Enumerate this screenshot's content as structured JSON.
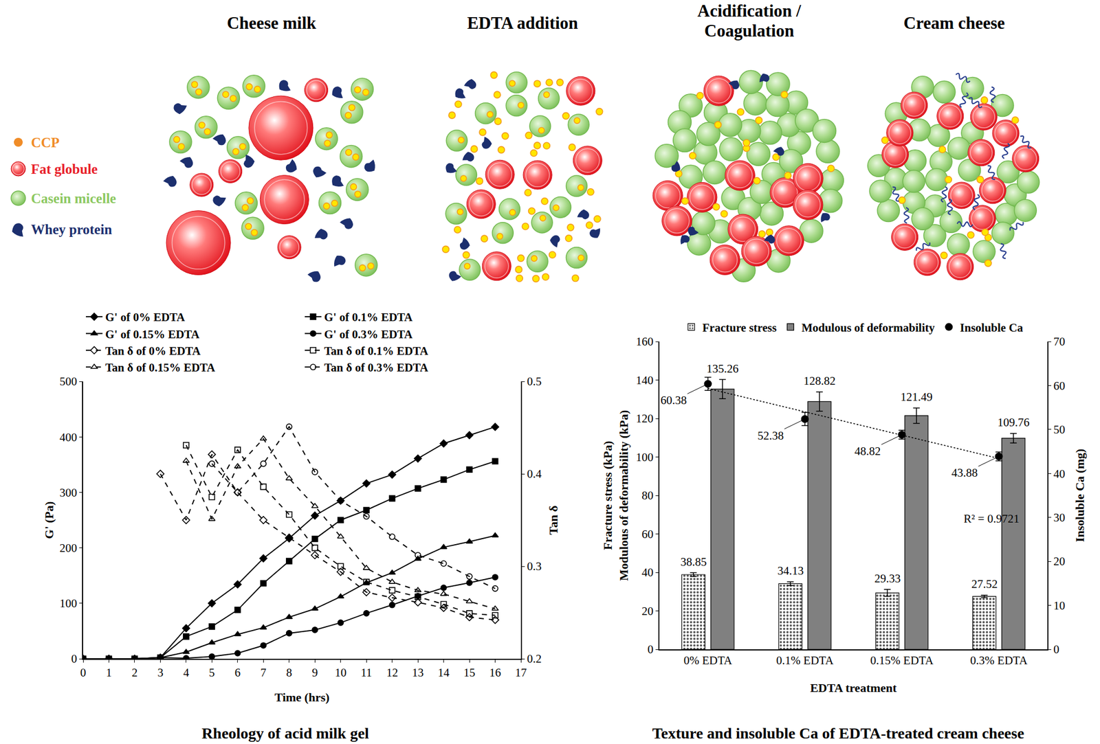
{
  "diagram": {
    "panels": [
      {
        "title": [
          "Cheese milk"
        ]
      },
      {
        "title": [
          "EDTA addition"
        ]
      },
      {
        "title": [
          "Acidification /",
          "Coagulation"
        ]
      },
      {
        "title": [
          "Cream cheese"
        ]
      }
    ],
    "legend": [
      {
        "label": "CCP",
        "color": "#f08c28"
      },
      {
        "label": "Fat globule",
        "color": "#e8202a"
      },
      {
        "label": "Casein micelle",
        "color": "#8cc860"
      },
      {
        "label": "Whey protein",
        "color": "#1c2f6e"
      }
    ]
  },
  "chart_data": [
    {
      "type": "line",
      "title": "Rheology of acid milk gel",
      "x_label": "Time (hrs)",
      "y_label": "G' (Pa)",
      "y2_label": "Tan δ",
      "x": [
        0,
        1,
        2,
        3,
        4,
        5,
        6,
        7,
        8,
        9,
        10,
        11,
        12,
        13,
        14,
        15,
        16
      ],
      "xlim": [
        0,
        17
      ],
      "xticks": [
        0,
        1,
        2,
        3,
        4,
        5,
        6,
        7,
        8,
        9,
        10,
        11,
        12,
        13,
        14,
        15,
        16,
        17
      ],
      "ylim": [
        0,
        500
      ],
      "yticks": [
        0,
        100,
        200,
        300,
        400,
        500
      ],
      "y2lim": [
        0.2,
        0.5
      ],
      "y2ticks": [
        0.2,
        0.3,
        0.4,
        0.5
      ],
      "grid": false,
      "legend": "top",
      "series": [
        {
          "name": "G' of 0% EDTA",
          "color": "#000000",
          "marker": "diamond",
          "line_style": "solid",
          "values": [
            0,
            0,
            0,
            2,
            55,
            100,
            134,
            181,
            217,
            258,
            285,
            316,
            332,
            361,
            388,
            403,
            418
          ]
        },
        {
          "name": "G' of 0.1% EDTA",
          "color": "#000000",
          "marker": "square",
          "line_style": "solid",
          "values": [
            0,
            0,
            0,
            2,
            40,
            58,
            88,
            136,
            176,
            216,
            250,
            268,
            289,
            307,
            323,
            341,
            356
          ]
        },
        {
          "name": "G' of 0.15% EDTA",
          "color": "#000000",
          "marker": "triangle-up",
          "line_style": "solid",
          "values": [
            0,
            0,
            0,
            2,
            12,
            29,
            44,
            56,
            75,
            90,
            112,
            137,
            155,
            180,
            201,
            211,
            222
          ]
        },
        {
          "name": "G' of 0.3% EDTA",
          "color": "#000000",
          "marker": "circle",
          "line_style": "solid",
          "values": [
            0,
            0,
            0,
            2,
            1,
            4,
            10,
            24,
            46,
            52,
            65,
            82,
            97,
            113,
            128,
            137,
            147
          ]
        },
        {
          "name": "Tan δ of 0% EDTA",
          "color": "#000000",
          "marker": "diamond-open",
          "line_style": "dash",
          "axis": "y2",
          "values": [
            null,
            null,
            null,
            0.4,
            0.35,
            0.421,
            0.38,
            0.35,
            0.331,
            0.312,
            0.294,
            0.272,
            0.266,
            0.261,
            0.255,
            0.245,
            0.242
          ]
        },
        {
          "name": "Tan δ of 0.1% EDTA",
          "color": "#000000",
          "marker": "square-open",
          "line_style": "dash",
          "axis": "y2",
          "values": [
            null,
            null,
            null,
            null,
            0.431,
            0.375,
            0.426,
            0.386,
            0.356,
            0.32,
            0.3,
            0.283,
            0.274,
            0.267,
            0.259,
            0.249,
            0.247
          ]
        },
        {
          "name": "Tan δ of 0.15% EDTA",
          "color": "#000000",
          "marker": "triangle-up-open",
          "line_style": "dash",
          "axis": "y2",
          "values": [
            null,
            null,
            null,
            null,
            0.414,
            0.351,
            0.408,
            0.438,
            0.395,
            0.365,
            0.332,
            0.298,
            0.283,
            0.274,
            0.27,
            0.262,
            0.254
          ]
        },
        {
          "name": "Tan δ of 0.3% EDTA",
          "color": "#000000",
          "marker": "circle-open",
          "line_style": "dash",
          "axis": "y2",
          "values": [
            null,
            null,
            null,
            null,
            null,
            0.411,
            0.38,
            0.411,
            0.451,
            0.402,
            0.371,
            0.354,
            0.332,
            0.312,
            0.303,
            0.289,
            0.276
          ]
        }
      ]
    },
    {
      "type": "bar",
      "title": "Texture and insoluble Ca of EDTA-treated cream cheese",
      "x_label": "EDTA treatment",
      "y_label": [
        "Fracture stress (kPa)",
        "Modulous of deformability (kPa)"
      ],
      "y2_label": "Insoluble Ca (mg)",
      "categories": [
        "0% EDTA",
        "0.1% EDTA",
        "0.15% EDTA",
        "0.3% EDTA"
      ],
      "ylim": [
        0,
        160
      ],
      "yticks": [
        0,
        20,
        40,
        60,
        80,
        100,
        120,
        140,
        160
      ],
      "y2lim": [
        0,
        70
      ],
      "y2ticks": [
        0,
        10,
        20,
        30,
        40,
        50,
        60,
        70
      ],
      "grid": false,
      "legend": "top",
      "data_labels": true,
      "annotations": [
        {
          "text": "R² = 0.9721"
        }
      ],
      "series": [
        {
          "name": "Fracture stress",
          "type": "bar",
          "color": "#ffffff",
          "marker": "dotted",
          "values": [
            38.85,
            34.13,
            29.33,
            27.52
          ],
          "errors": [
            1.0,
            1.0,
            1.8,
            0.6
          ]
        },
        {
          "name": "Modulous of deformability",
          "type": "bar",
          "color": "#808080",
          "values": [
            135.26,
            128.82,
            121.49,
            109.76
          ],
          "errors": [
            5.0,
            5.0,
            4.0,
            2.5
          ]
        },
        {
          "name": "Insoluble Ca",
          "type": "scatter",
          "axis": "y2",
          "color": "#000000",
          "marker": "circle",
          "values": [
            60.38,
            52.38,
            48.82,
            43.88
          ],
          "errors": [
            1.5,
            1.5,
            1.0,
            1.0
          ]
        },
        {
          "type": "line",
          "axis": "y2",
          "color": "#000000",
          "line_style": "dot",
          "values": [
            59.32,
            54.02,
            48.71,
            43.41
          ]
        }
      ]
    }
  ]
}
